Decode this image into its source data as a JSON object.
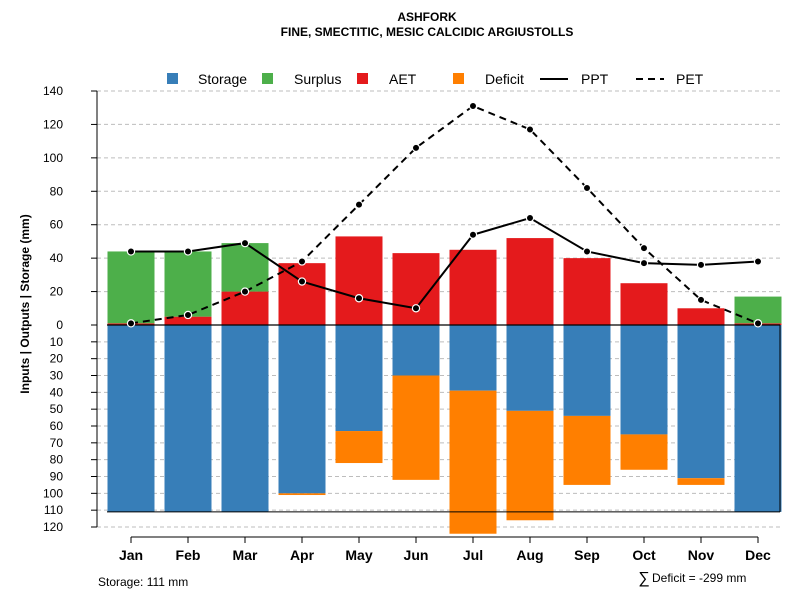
{
  "chart_data": {
    "type": "bar",
    "title": "ASHFORK",
    "subtitle": "FINE, SMECTITIC, MESIC CALCIDIC ARGIUSTOLLS",
    "ylabel": "Inputs | Outputs | Storage    (mm)",
    "categories": [
      "Jan",
      "Feb",
      "Mar",
      "Apr",
      "May",
      "Jun",
      "Jul",
      "Aug",
      "Sep",
      "Oct",
      "Nov",
      "Dec"
    ],
    "ylim": [
      -120,
      140
    ],
    "yticks_upper": [
      0,
      20,
      40,
      60,
      80,
      100,
      120,
      140
    ],
    "yticks_lower": [
      10,
      20,
      30,
      40,
      50,
      60,
      70,
      80,
      90,
      100,
      110,
      120
    ],
    "legend": [
      "Storage",
      "Surplus",
      "AET",
      "Deficit",
      "PPT",
      "PET"
    ],
    "colors": {
      "Storage": "#377eb8",
      "Surplus": "#4daf4a",
      "AET": "#e41a1c",
      "Deficit": "#ff7f00"
    },
    "series": [
      {
        "name": "AET",
        "values": [
          1,
          5,
          20,
          37,
          53,
          43,
          45,
          52,
          40,
          25,
          10,
          1
        ]
      },
      {
        "name": "Surplus",
        "values": [
          43,
          39,
          29,
          0,
          0,
          0,
          0,
          0,
          0,
          0,
          0,
          16
        ]
      },
      {
        "name": "Storage",
        "values": [
          111,
          111,
          111,
          100,
          63,
          30,
          39,
          51,
          54,
          65,
          91,
          111
        ]
      },
      {
        "name": "Deficit",
        "values": [
          0,
          0,
          0,
          1,
          19,
          62,
          85,
          65,
          41,
          21,
          4,
          0
        ]
      },
      {
        "name": "PPT",
        "values": [
          44,
          44,
          49,
          26,
          16,
          10,
          54,
          64,
          44,
          37,
          36,
          38
        ]
      },
      {
        "name": "PET",
        "values": [
          1,
          6,
          20,
          38,
          72,
          106,
          131,
          117,
          82,
          46,
          15,
          1
        ]
      }
    ],
    "storage_capacity": 111,
    "annotations": {
      "storage_note": "Storage: 111 mm",
      "deficit_symbol": "∑",
      "deficit_note": "Deficit = -299 mm"
    }
  }
}
